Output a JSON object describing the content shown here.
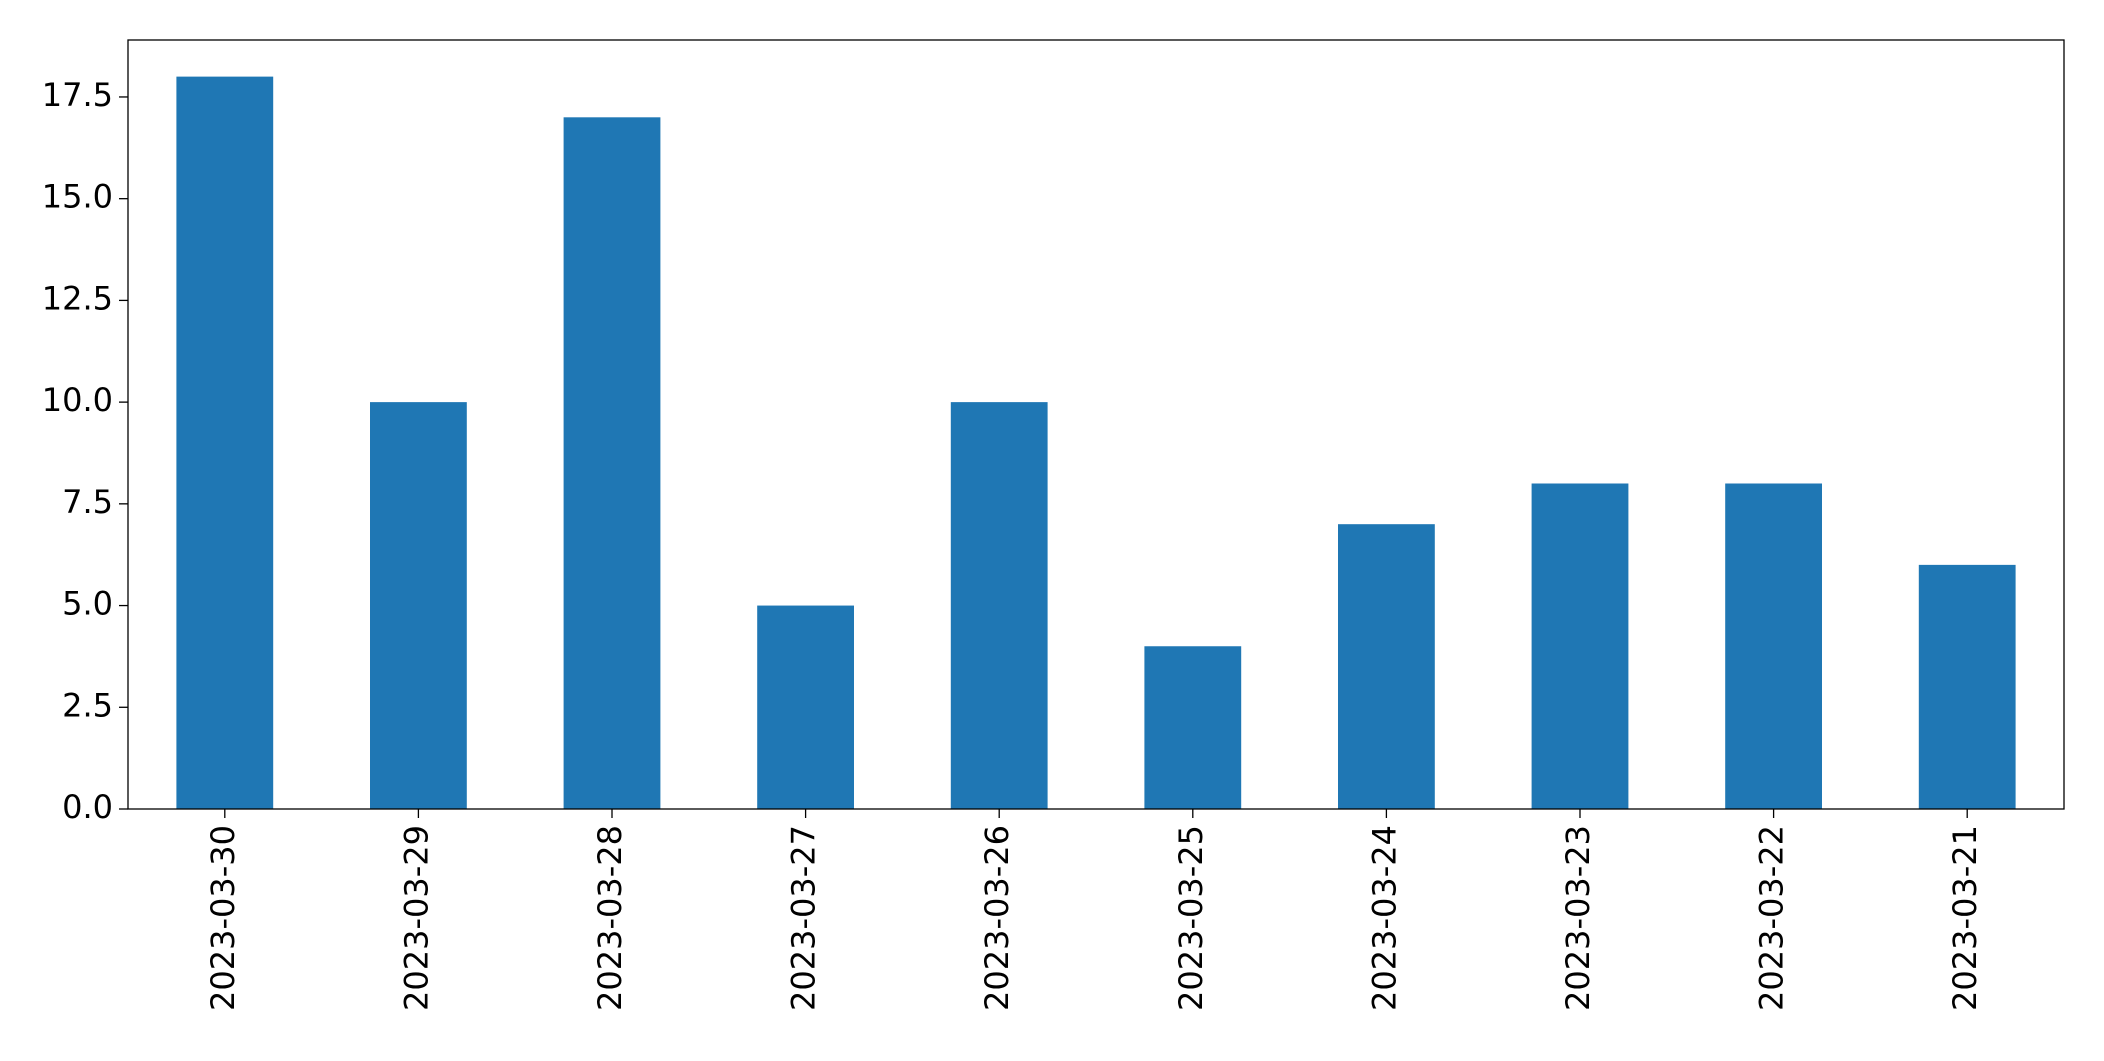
{
  "chart_data": {
    "type": "bar",
    "categories": [
      "2023-03-30",
      "2023-03-29",
      "2023-03-28",
      "2023-03-27",
      "2023-03-26",
      "2023-03-25",
      "2023-03-24",
      "2023-03-23",
      "2023-03-22",
      "2023-03-21"
    ],
    "values": [
      18,
      10,
      17,
      5,
      10,
      4,
      7,
      8,
      8,
      6
    ],
    "color": "#1f77b4",
    "ylim": [
      0,
      18.9
    ],
    "yticks": [
      {
        "value": 0,
        "label": "0.0"
      },
      2.5,
      {
        "value": 5,
        "label": "5.0"
      },
      7.5,
      {
        "value": 10,
        "label": "10.0"
      },
      12.5,
      {
        "value": 15,
        "label": "15.0"
      },
      17.5
    ],
    "grid": false
  }
}
